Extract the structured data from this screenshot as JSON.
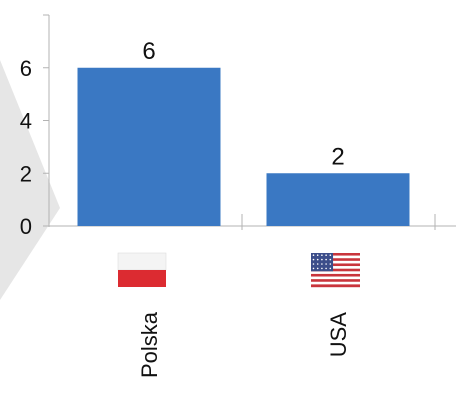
{
  "chart_data": {
    "type": "bar",
    "categories": [
      "Polska",
      "USA"
    ],
    "values": [
      6,
      2
    ],
    "data_labels": [
      "6",
      "2"
    ],
    "yticks": [
      0,
      2,
      4,
      6
    ],
    "ylim": [
      0,
      8
    ],
    "title": "",
    "xlabel": "",
    "ylabel": "",
    "grid": false,
    "legend": "none",
    "bar_color": "#3a78c3",
    "category_icons": [
      "flag-poland-icon",
      "flag-usa-icon"
    ]
  },
  "colors": {
    "axis": "#b3b3b3",
    "text": "#111111",
    "watermark": "#e6e6e6",
    "poland_white": "#f4f4f4",
    "poland_red": "#dc2b31",
    "usa_red": "#c9353c",
    "usa_blue": "#3c4e8a"
  }
}
